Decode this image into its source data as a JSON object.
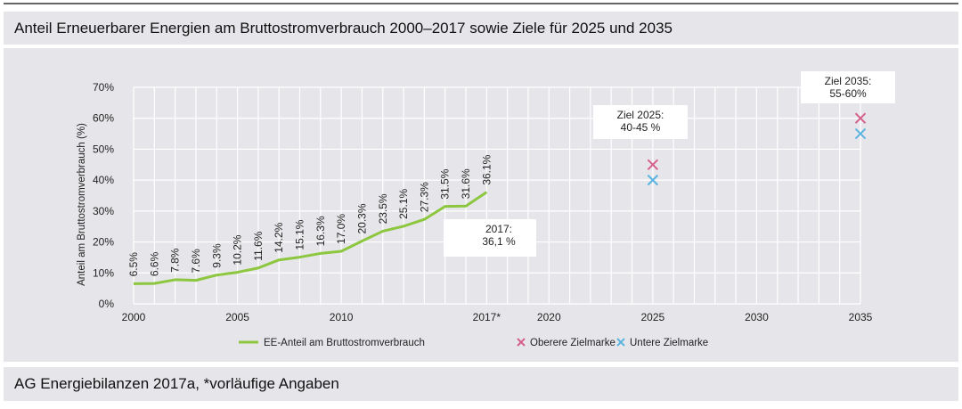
{
  "title": "Anteil Erneuerbarer Energien am Bruttostromverbrauch 2000–2017 sowie Ziele für 2025 und 2035",
  "footer": "AG Energiebilanzen 2017a, *vorläufige Angaben",
  "chart_data": {
    "type": "line",
    "ylabel": "Anteil am Bruttostromverbrauch (%)",
    "xlim": [
      2000,
      2035
    ],
    "ylim": [
      0,
      70
    ],
    "grid": true,
    "x_ticks": [
      2000,
      2005,
      2010,
      2017,
      2020,
      2025,
      2030,
      2035
    ],
    "x_tick_labels": [
      "2000",
      "2005",
      "2010",
      "2017*",
      "2020",
      "2025",
      "2030",
      "2035"
    ],
    "y_ticks": [
      0,
      10,
      20,
      30,
      40,
      50,
      60,
      70
    ],
    "y_tick_labels": [
      "0%",
      "10%",
      "20%",
      "30%",
      "40%",
      "50%",
      "60%",
      "70%"
    ],
    "series": [
      {
        "name": "EE-Anteil am Bruttostromverbrauch",
        "color": "#8dc63f",
        "x": [
          2000,
          2001,
          2002,
          2003,
          2004,
          2005,
          2006,
          2007,
          2008,
          2009,
          2010,
          2011,
          2012,
          2013,
          2014,
          2015,
          2016,
          2017
        ],
        "values": [
          6.5,
          6.6,
          7.8,
          7.6,
          9.3,
          10.2,
          11.6,
          14.2,
          15.1,
          16.3,
          17.0,
          20.3,
          23.5,
          25.1,
          27.3,
          31.5,
          31.6,
          36.1
        ],
        "labels": [
          "6.5%",
          "6.6%",
          "7.8%",
          "7.6%",
          "9.3%",
          "10.2%",
          "11.6%",
          "14.2%",
          "15.1%",
          "16.3%",
          "17.0%",
          "20.3%",
          "23.5%",
          "25.1%",
          "27.3%",
          "31.5%",
          "31.6%",
          "36.1%"
        ]
      },
      {
        "name": "Oberere Zielmarke",
        "color": "#d6608a",
        "marker": "x",
        "x": [
          2025,
          2035
        ],
        "values": [
          45,
          60
        ]
      },
      {
        "name": "Untere Zielmarke",
        "color": "#5bb4e0",
        "marker": "x",
        "x": [
          2025,
          2035
        ],
        "values": [
          40,
          55
        ]
      }
    ],
    "annotations": [
      {
        "lines": [
          "2017:",
          "36,1 %"
        ]
      },
      {
        "lines": [
          "Ziel 2025:",
          "40-45 %"
        ]
      },
      {
        "lines": [
          "Ziel 2035:",
          "55-60%"
        ]
      }
    ],
    "legend_position": "bottom"
  }
}
